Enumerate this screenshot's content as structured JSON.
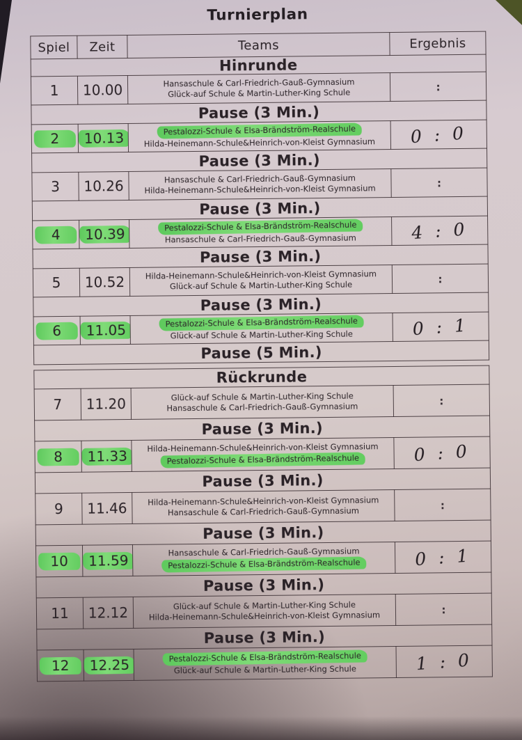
{
  "title": "Turnierplan",
  "header": {
    "spiel": "Spiel",
    "zeit": "Zeit",
    "teams": "Teams",
    "ergebnis": "Ergebnis"
  },
  "unplayed_result": ":",
  "highlight_color": "#6fd36a",
  "paper_color": "#d3c7cb",
  "ink_color": "#2a2227",
  "sections": [
    {
      "label": "Hinrunde",
      "rows": [
        {
          "kind": "game",
          "nr": "1",
          "time": "10.00",
          "teamA": "Hansaschule & Carl-Friedrich-Gauß-Gymnasium",
          "teamB": "Glück-auf Schule & Martin-Luther-King Schule",
          "result": "",
          "hl": null
        },
        {
          "kind": "pause",
          "label": "Pause (3 Min.)"
        },
        {
          "kind": "game",
          "nr": "2",
          "time": "10.13",
          "teamA": "Pestalozzi-Schule & Elsa-Brändström-Realschule",
          "teamB": "Hilda-Heinemann-Schule&Heinrich-von-Kleist Gymnasium",
          "result": "0 : 0",
          "hl": "A"
        },
        {
          "kind": "pause",
          "label": "Pause (3 Min.)"
        },
        {
          "kind": "game",
          "nr": "3",
          "time": "10.26",
          "teamA": "Hansaschule & Carl-Friedrich-Gauß-Gymnasium",
          "teamB": "Hilda-Heinemann-Schule&Heinrich-von-Kleist Gymnasium",
          "result": "",
          "hl": null
        },
        {
          "kind": "pause",
          "label": "Pause (3 Min.)"
        },
        {
          "kind": "game",
          "nr": "4",
          "time": "10.39",
          "teamA": "Pestalozzi-Schule & Elsa-Brändström-Realschule",
          "teamB": "Hansaschule & Carl-Friedrich-Gauß-Gymnasium",
          "result": "4 : 0",
          "hl": "A"
        },
        {
          "kind": "pause",
          "label": "Pause (3 Min.)"
        },
        {
          "kind": "game",
          "nr": "5",
          "time": "10.52",
          "teamA": "Hilda-Heinemann-Schule&Heinrich-von-Kleist Gymnasium",
          "teamB": "Glück-auf Schule & Martin-Luther-King Schule",
          "result": "",
          "hl": null
        },
        {
          "kind": "pause",
          "label": "Pause (3 Min.)"
        },
        {
          "kind": "game",
          "nr": "6",
          "time": "11.05",
          "teamA": "Pestalozzi-Schule & Elsa-Brändström-Realschule",
          "teamB": "Glück-auf Schule & Martin-Luther-King Schule",
          "result": "0 : 1",
          "hl": "A"
        },
        {
          "kind": "pause",
          "label": "Pause (5 Min.)"
        }
      ]
    },
    {
      "label": "Rückrunde",
      "rows": [
        {
          "kind": "game",
          "nr": "7",
          "time": "11.20",
          "teamA": "Glück-auf Schule & Martin-Luther-King Schule",
          "teamB": "Hansaschule & Carl-Friedrich-Gauß-Gymnasium",
          "result": "",
          "hl": null
        },
        {
          "kind": "pause",
          "label": "Pause (3 Min.)"
        },
        {
          "kind": "game",
          "nr": "8",
          "time": "11.33",
          "teamA": "Hilda-Heinemann-Schule&Heinrich-von-Kleist Gymnasium",
          "teamB": "Pestalozzi-Schule & Elsa-Brändström-Realschule",
          "result": "0 : 0",
          "hl": "B"
        },
        {
          "kind": "pause",
          "label": "Pause (3 Min.)"
        },
        {
          "kind": "game",
          "nr": "9",
          "time": "11.46",
          "teamA": "Hilda-Heinemann-Schule&Heinrich-von-Kleist Gymnasium",
          "teamB": "Hansaschule & Carl-Friedrich-Gauß-Gymnasium",
          "result": "",
          "hl": null
        },
        {
          "kind": "pause",
          "label": "Pause (3 Min.)"
        },
        {
          "kind": "game",
          "nr": "10",
          "time": "11.59",
          "teamA": "Hansaschule & Carl-Friedrich-Gauß-Gymnasium",
          "teamB": "Pestalozzi-Schule & Elsa-Brändström-Realschule",
          "result": "0 : 1",
          "hl": "B"
        },
        {
          "kind": "pause",
          "label": "Pause (3 Min.)"
        },
        {
          "kind": "game",
          "nr": "11",
          "time": "12.12",
          "teamA": "Glück-auf Schule & Martin-Luther-King Schule",
          "teamB": "Hilda-Heinemann-Schule&Heinrich-von-Kleist Gymnasium",
          "result": "",
          "hl": null
        },
        {
          "kind": "pause",
          "label": "Pause (3 Min.)"
        },
        {
          "kind": "game",
          "nr": "12",
          "time": "12.25",
          "teamA": "Pestalozzi-Schule & Elsa-Brändström-Realschule",
          "teamB": "Glück-auf Schule & Martin-Luther-King Schule",
          "result": "1 : 0",
          "hl": "A"
        }
      ]
    }
  ]
}
